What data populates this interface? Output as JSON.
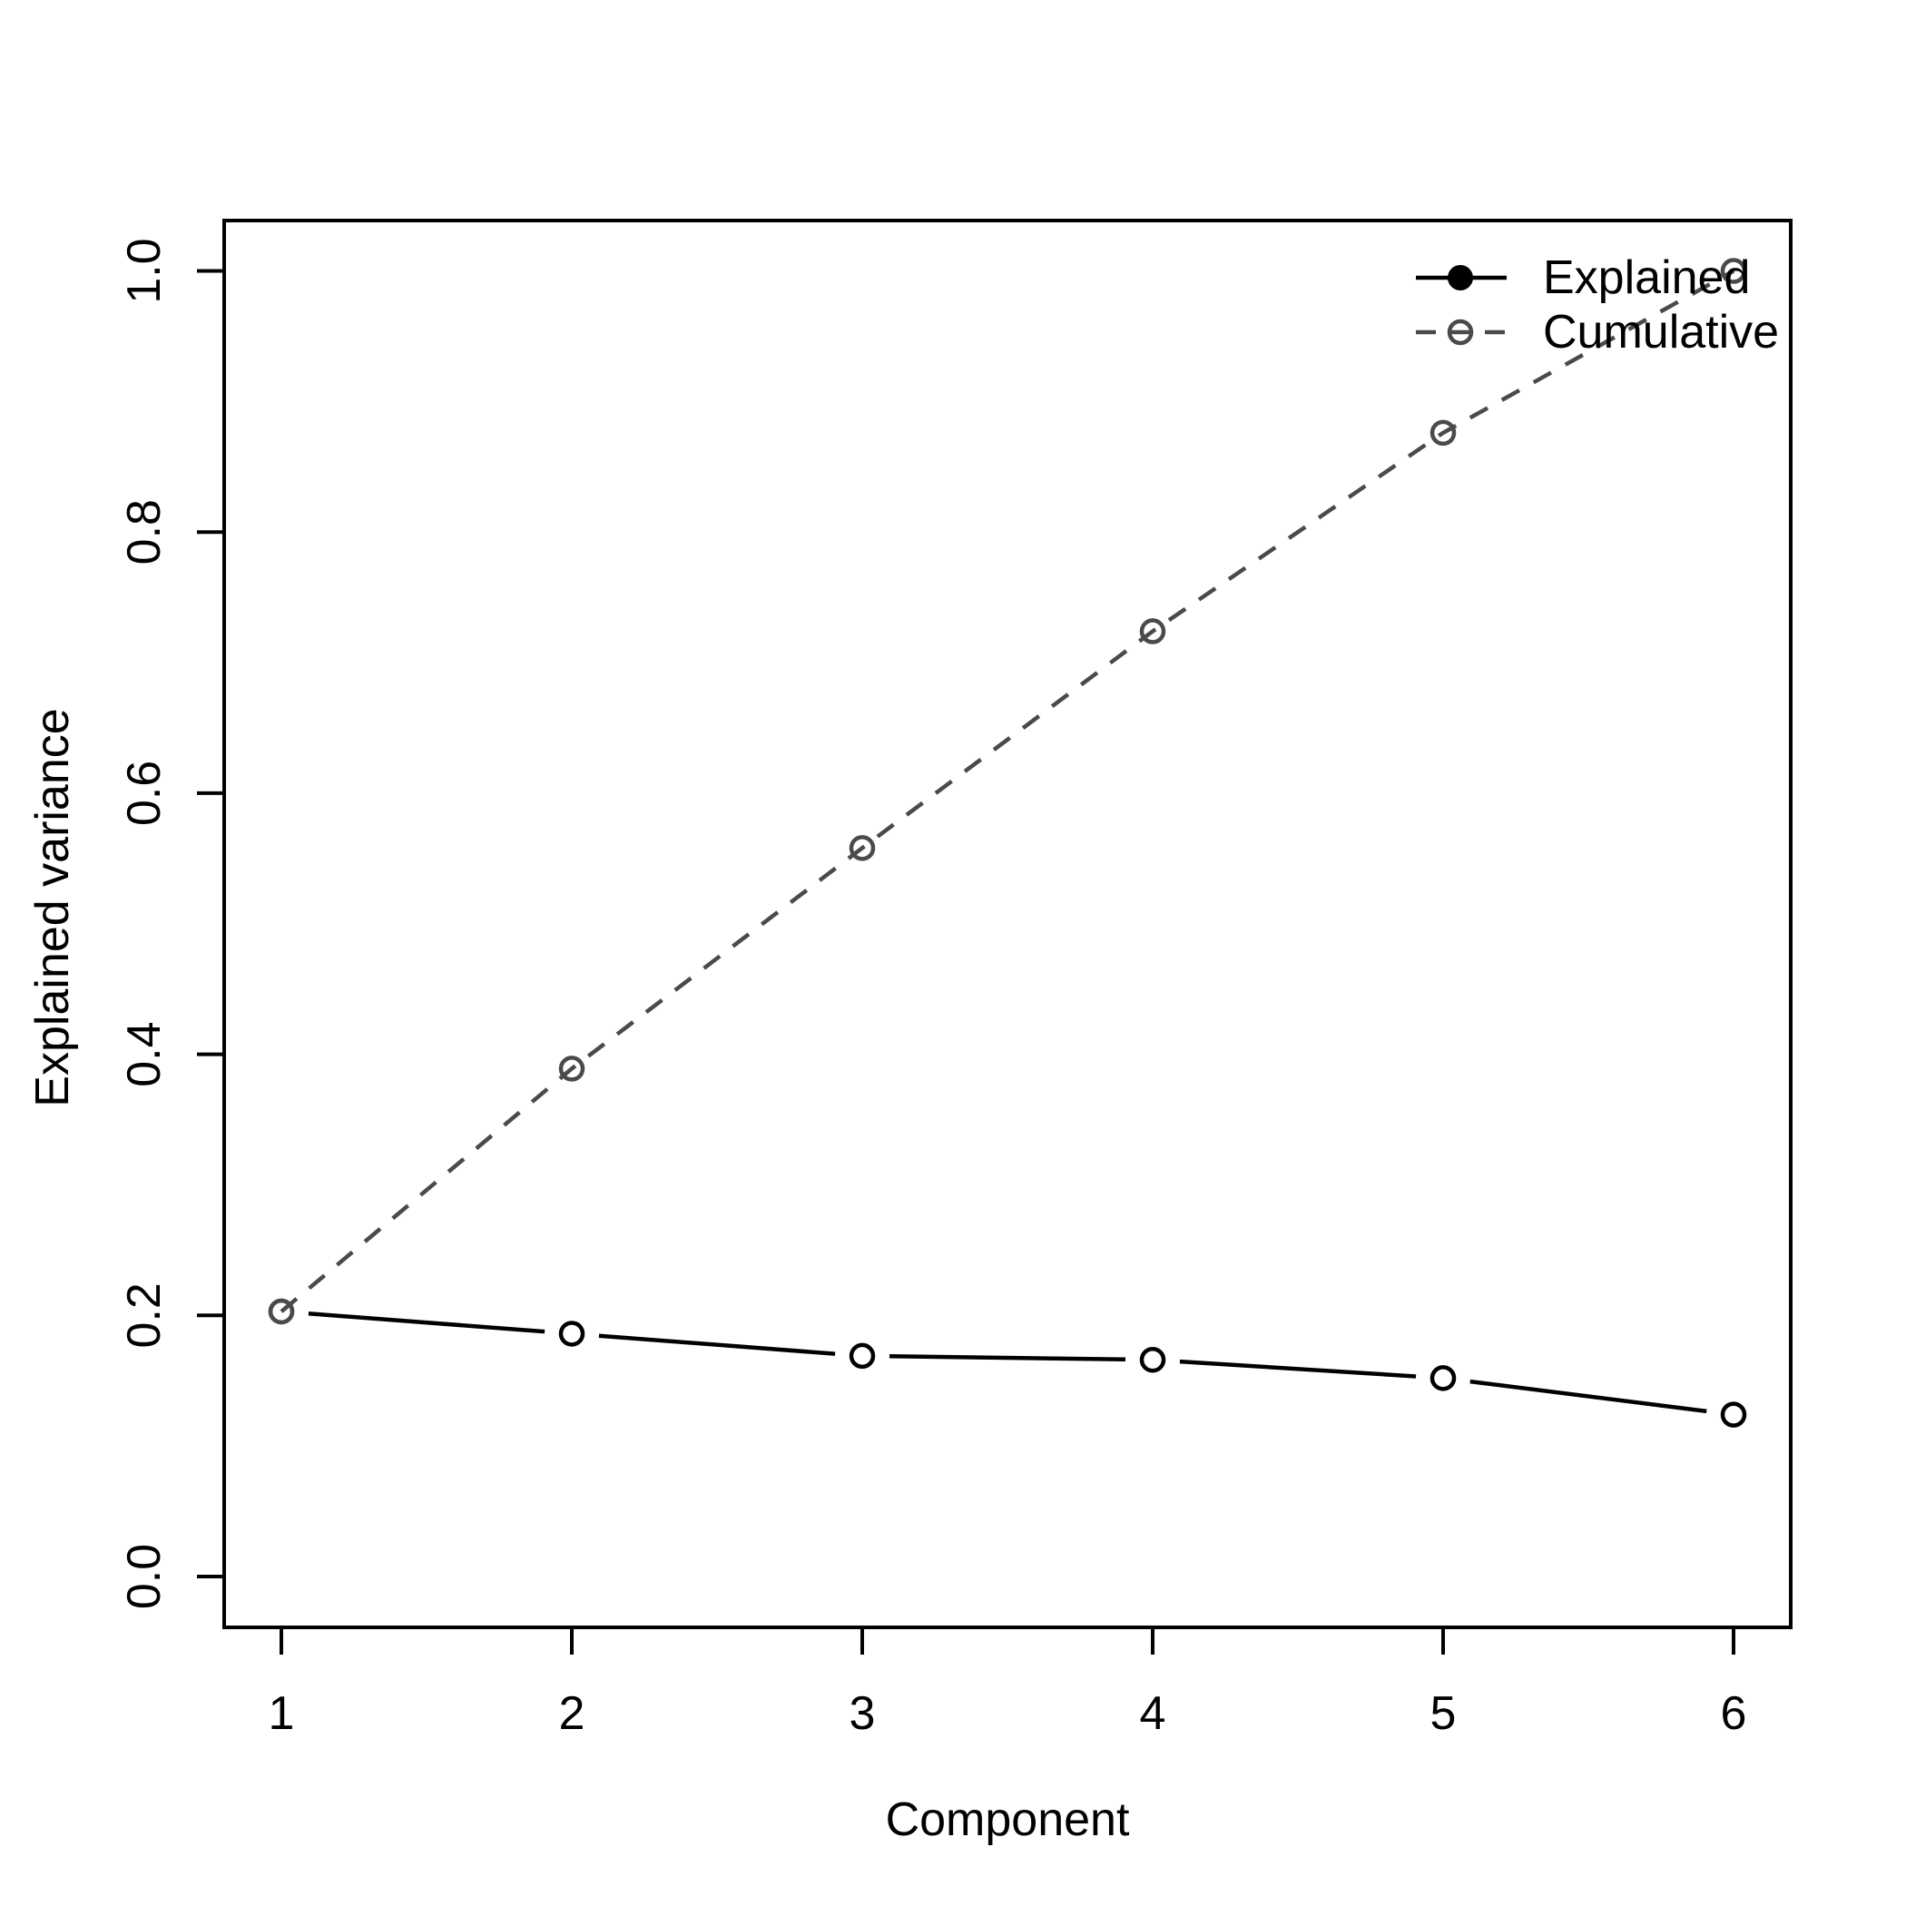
{
  "figure": {
    "background": "#ffffff",
    "foreground": "#000000"
  },
  "chart_data": {
    "type": "line",
    "title": "",
    "xlabel": "Component",
    "ylabel": "Explained variance",
    "x": [
      1,
      2,
      3,
      4,
      5,
      6
    ],
    "series": [
      {
        "name": "Explained",
        "values": [
          0.203,
          0.186,
          0.169,
          0.166,
          0.152,
          0.124
        ],
        "color": "#000000",
        "line_style": "solid",
        "marker": "open-circle",
        "draw": "segments-with-gaps"
      },
      {
        "name": "Cumulative",
        "values": [
          0.203,
          0.389,
          0.558,
          0.724,
          0.876,
          1.0
        ],
        "color": "#4a4a4a",
        "line_style": "dashed",
        "marker": "open-circle",
        "draw": "line-through-points"
      }
    ],
    "x_ticks": [
      "1",
      "2",
      "3",
      "4",
      "5",
      "6"
    ],
    "y_ticks": [
      "0.0",
      "0.2",
      "0.4",
      "0.6",
      "0.8",
      "1.0"
    ],
    "y_tick_values": [
      0,
      0.2,
      0.4,
      0.6,
      0.8,
      1.0
    ],
    "xlim": [
      1,
      6
    ],
    "ylim": [
      0,
      1
    ],
    "grid": false,
    "legend": {
      "position": "top-right",
      "entries": [
        {
          "label": "Explained",
          "line": "solid",
          "marker": "filled-circle",
          "color": "#000000"
        },
        {
          "label": "Cumulative",
          "line": "dashed",
          "marker": "open-circle",
          "color": "#4a4a4a"
        }
      ]
    }
  }
}
